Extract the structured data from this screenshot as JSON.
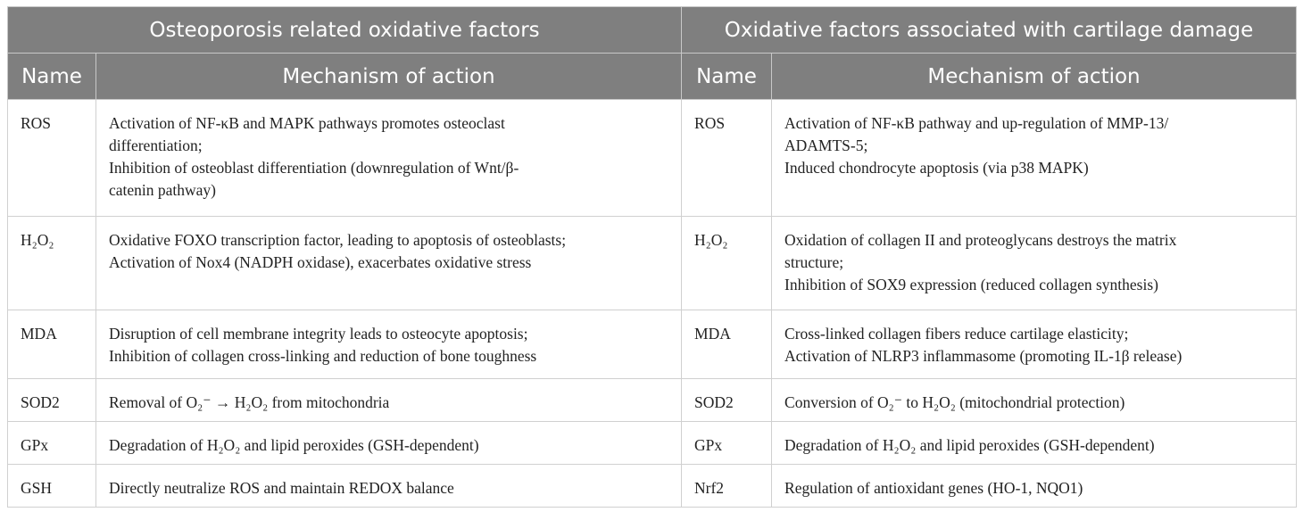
{
  "groups": [
    "Osteoporosis related oxidative factors",
    "Oxidative factors associated with cartilage damage"
  ],
  "columns": [
    "Name",
    "Mechanism of action",
    "Name",
    "Mechanism of action"
  ],
  "rows": [
    {
      "left_name": "ROS",
      "left_lines": [
        "Activation of NF-κB and MAPK pathways promotes osteoclast",
        "differentiation;",
        "Inhibition of osteoblast differentiation (downregulation of Wnt/β-",
        "catenin pathway)"
      ],
      "right_name": "ROS",
      "right_lines": [
        "Activation of NF-κB pathway and up-regulation of MMP-13/",
        "ADAMTS-5;",
        "Induced chondrocyte apoptosis (via p38 MAPK)"
      ]
    },
    {
      "left_name": "H₂O₂",
      "left_lines": [
        "Oxidative FOXO transcription factor, leading to apoptosis of osteoblasts;",
        "Activation of Nox4 (NADPH oxidase), exacerbates oxidative stress"
      ],
      "right_name": "H₂O₂",
      "right_lines": [
        "Oxidation of collagen II and proteoglycans destroys the matrix",
        "structure;",
        "Inhibition of SOX9 expression (reduced collagen synthesis)"
      ]
    },
    {
      "left_name": "MDA",
      "left_lines": [
        "Disruption of cell membrane integrity leads to osteocyte apoptosis;",
        "Inhibition of collagen cross-linking and reduction of bone toughness"
      ],
      "right_name": "MDA",
      "right_lines": [
        "Cross-linked collagen fibers reduce cartilage elasticity;",
        "Activation of NLRP3 inflammasome (promoting IL-1β release)"
      ]
    },
    {
      "left_name": "SOD2",
      "left_lines": [
        "Removal of O₂⁻ → H₂O₂ from mitochondria"
      ],
      "right_name": "SOD2",
      "right_lines": [
        "Conversion of O₂⁻ to H₂O₂ (mitochondrial protection)"
      ]
    },
    {
      "left_name": "GPx",
      "left_lines": [
        "Degradation of H₂O₂ and lipid peroxides (GSH-dependent)"
      ],
      "right_name": "GPx",
      "right_lines": [
        "Degradation of H₂O₂ and lipid peroxides (GSH-dependent)"
      ]
    },
    {
      "left_name": "GSH",
      "left_lines": [
        "Directly neutralize ROS and maintain REDOX balance"
      ],
      "right_name": "Nrf2",
      "right_lines": [
        "Regulation of antioxidant genes (HO-1, NQO1)"
      ]
    }
  ]
}
